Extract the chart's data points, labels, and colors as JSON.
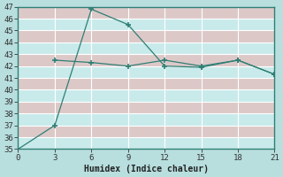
{
  "line1_x": [
    0,
    3,
    6,
    9,
    12,
    15,
    18,
    21
  ],
  "line1_y": [
    35,
    37,
    46.8,
    45.5,
    42.0,
    41.9,
    42.5,
    41.3
  ],
  "line2_x": [
    3,
    6,
    9,
    12,
    15,
    18,
    21
  ],
  "line2_y": [
    42.5,
    42.3,
    42.0,
    42.5,
    42.0,
    42.5,
    41.3
  ],
  "line_color": "#2e7f74",
  "marker": "+",
  "markersize": 4,
  "xlabel": "Humidex (Indice chaleur)",
  "xlim": [
    0,
    21
  ],
  "ylim": [
    35,
    47
  ],
  "xticks": [
    0,
    3,
    6,
    9,
    12,
    15,
    18,
    21
  ],
  "yticks": [
    35,
    36,
    37,
    38,
    39,
    40,
    41,
    42,
    43,
    44,
    45,
    46,
    47
  ],
  "bg_color": "#b8dede",
  "band_color_even": "#c8eaea",
  "band_color_odd": "#ddc8c8",
  "grid_v_color": "#ffffff",
  "grid_h_color": "#ffffff"
}
